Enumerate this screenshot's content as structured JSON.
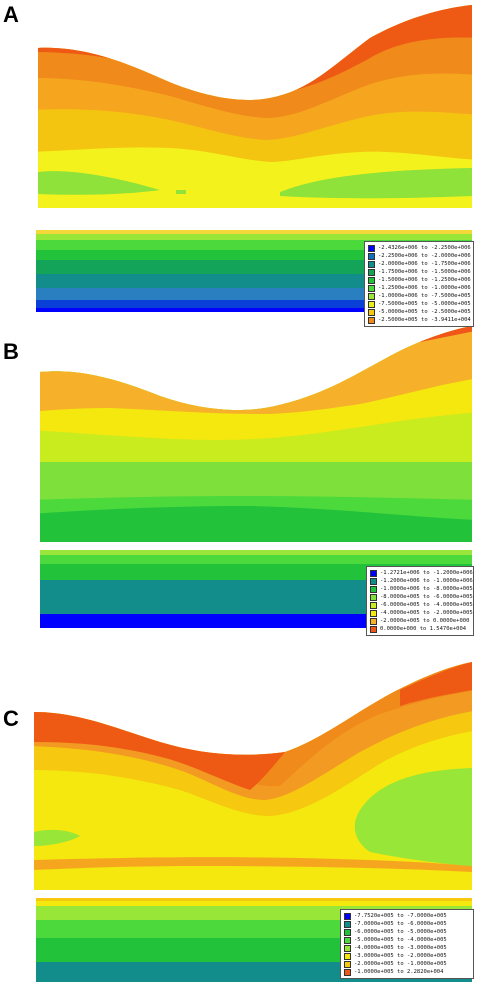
{
  "panels": [
    {
      "label": "A",
      "legend": [
        {
          "text": "-2.4326e+006 to -2.2500e+006",
          "color": "#0000ff"
        },
        {
          "text": "-2.2500e+006 to -2.0000e+006",
          "color": "#0e6fbf"
        },
        {
          "text": "-2.0000e+006 to -1.7500e+006",
          "color": "#138d8c"
        },
        {
          "text": "-1.7500e+006 to -1.5000e+006",
          "color": "#13a45a"
        },
        {
          "text": "-1.5000e+006 to -1.2500e+006",
          "color": "#22c23b"
        },
        {
          "text": "-1.2500e+006 to -1.0000e+006",
          "color": "#4cd93c"
        },
        {
          "text": "-1.0000e+006 to -7.5000e+005",
          "color": "#98e638"
        },
        {
          "text": "-7.5000e+005 to -5.0000e+005",
          "color": "#e4ef1d"
        },
        {
          "text": "-5.0000e+005 to -2.5000e+005",
          "color": "#f6c80f"
        },
        {
          "text": "-2.5000e+005 to -3.9411e+004",
          "color": "#f28a1a"
        }
      ]
    },
    {
      "label": "B",
      "legend": [
        {
          "text": "-1.2721e+006 to -1.2000e+006",
          "color": "#0000ff"
        },
        {
          "text": "-1.2000e+006 to -1.0000e+006",
          "color": "#138d8c"
        },
        {
          "text": "-1.0000e+006 to -8.0000e+005",
          "color": "#22c23b"
        },
        {
          "text": "-8.0000e+005 to -6.0000e+005",
          "color": "#7ee03a"
        },
        {
          "text": "-6.0000e+005 to -4.0000e+005",
          "color": "#c9ec1e"
        },
        {
          "text": "-4.0000e+005 to -2.0000e+005",
          "color": "#f4e80e"
        },
        {
          "text": "-2.0000e+005 to  0.0000e+000",
          "color": "#f6b02a"
        },
        {
          "text": " 0.0000e+000 to  1.5470e+004",
          "color": "#f0561a"
        }
      ]
    },
    {
      "label": "C",
      "legend": [
        {
          "text": "-7.7520e+005 to -7.0000e+005",
          "color": "#0000ff"
        },
        {
          "text": "-7.0000e+005 to -6.0000e+005",
          "color": "#138d8c"
        },
        {
          "text": "-6.0000e+005 to -5.0000e+005",
          "color": "#22c23b"
        },
        {
          "text": "-5.0000e+005 to -4.0000e+005",
          "color": "#4cd93c"
        },
        {
          "text": "-4.0000e+005 to -3.0000e+005",
          "color": "#98e638"
        },
        {
          "text": "-3.0000e+005 to -2.0000e+005",
          "color": "#f4e80e"
        },
        {
          "text": "-2.0000e+005 to -1.0000e+005",
          "color": "#f6c80f"
        },
        {
          "text": "-1.0000e+005 to  2.2820e+004",
          "color": "#f0561a"
        }
      ]
    }
  ]
}
